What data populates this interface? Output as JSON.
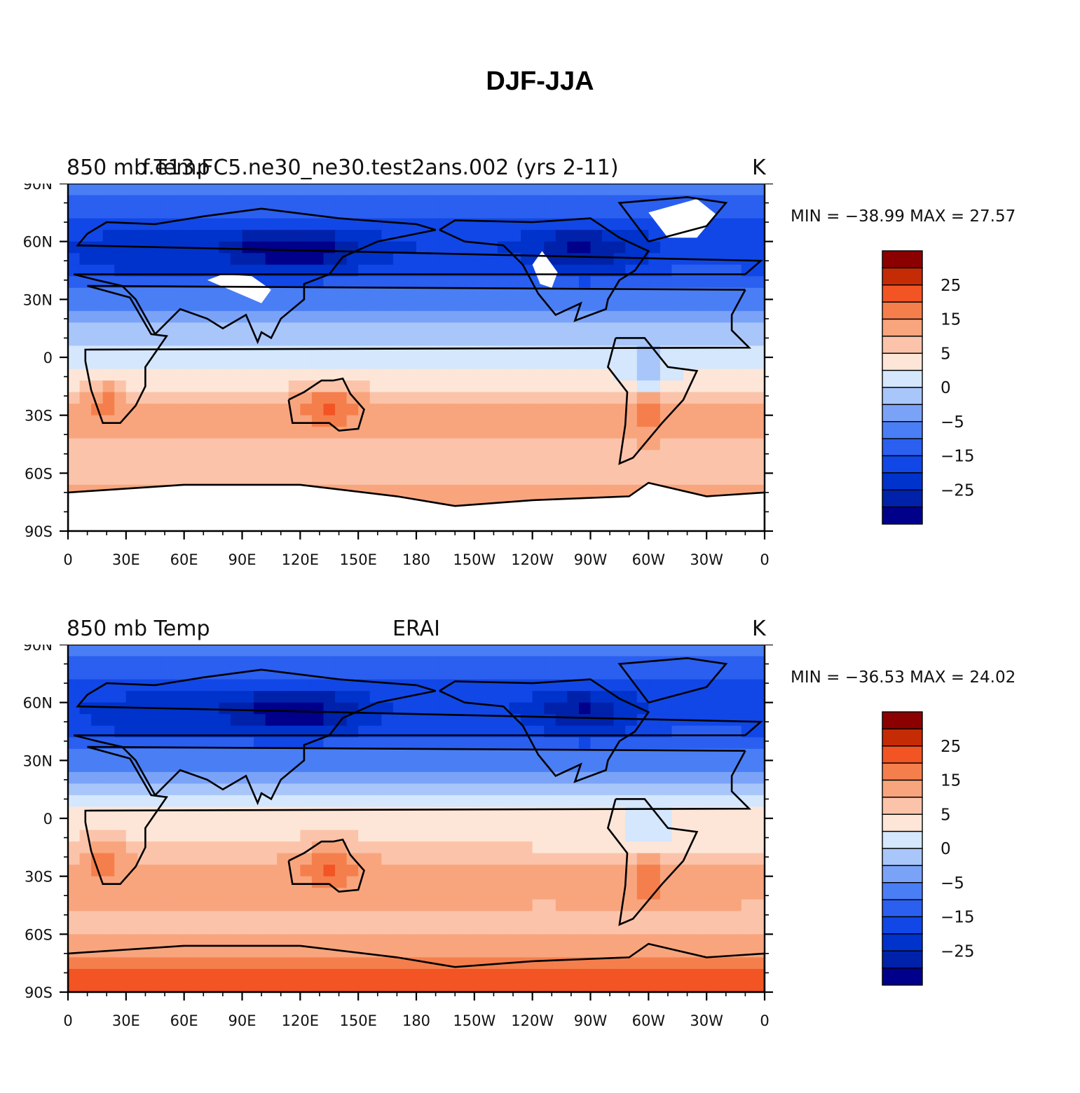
{
  "figure": {
    "title": "DJF-JJA"
  },
  "colors": {
    "palette": [
      "#00008b",
      "#0022aa",
      "#0033cc",
      "#1147e6",
      "#2a5ff0",
      "#4a7ef5",
      "#7aa3f8",
      "#a9c6fb",
      "#d4e7fd",
      "#fde6d8",
      "#fbc4aa",
      "#f8a57e",
      "#f57f4c",
      "#f25424",
      "#c52b05",
      "#8b0000"
    ],
    "white": "#ffffff",
    "coast": "#000000"
  },
  "panels": [
    {
      "id": "model",
      "left_title": "850  mb  Temp",
      "overlay_title": "f.e13.FC5.ne30_ne30.test2ans.002 (yrs 2-11)",
      "center_title": "",
      "units": "K",
      "minmax_text": "MIN = −38.99  MAX =   27.57",
      "min": -38.99,
      "max": 27.57
    },
    {
      "id": "obs",
      "left_title": "850  mb  Temp",
      "overlay_title": "",
      "center_title": "ERAI",
      "units": "K",
      "minmax_text": "MIN = −36.53  MAX =   24.02",
      "min": -36.53,
      "max": 24.02
    }
  ],
  "axes": {
    "lat_labels": [
      "90N",
      "60N",
      "30N",
      "0",
      "30S",
      "60S",
      "90S"
    ],
    "lon_labels": [
      "0",
      "30E",
      "60E",
      "90E",
      "120E",
      "150E",
      "180",
      "150W",
      "120W",
      "90W",
      "60W",
      "30W",
      "0"
    ],
    "lat_range": [
      -90,
      90
    ],
    "lon_range": [
      0,
      360
    ]
  },
  "colorbar": {
    "levels": [
      -35,
      -30,
      -25,
      -20,
      -15,
      -10,
      -5,
      -2,
      0,
      2,
      5,
      10,
      15,
      20,
      25
    ],
    "labels": [
      "25",
      "15",
      "5",
      "0",
      "−5",
      "−15",
      "−25"
    ]
  },
  "chart_data": [
    {
      "type": "heatmap",
      "title": "850  mb  Temp",
      "subtitle": "f.e13.FC5.ne30_ne30.test2ans.002 (yrs 2-11)",
      "units": "K",
      "zone_means_by_lat": {
        "lat": [
          90,
          75,
          60,
          45,
          30,
          15,
          0,
          -15,
          -30,
          -45,
          -60,
          -75,
          -90
        ],
        "value": [
          -12,
          -18,
          -25,
          -22,
          -12,
          -3,
          -1,
          1,
          7,
          4,
          2,
          8,
          null
        ]
      },
      "min": -38.99,
      "max": 27.57
    },
    {
      "type": "heatmap",
      "title": "850  mb  Temp",
      "subtitle": "ERAI",
      "units": "K",
      "zone_means_by_lat": {
        "lat": [
          90,
          75,
          60,
          45,
          30,
          15,
          0,
          -15,
          -30,
          -45,
          -60,
          -75,
          -90
        ],
        "value": [
          -12,
          -18,
          -24,
          -22,
          -12,
          -3,
          1,
          2,
          7,
          5,
          3,
          14,
          20
        ]
      },
      "min": -36.53,
      "max": 24.02
    }
  ]
}
